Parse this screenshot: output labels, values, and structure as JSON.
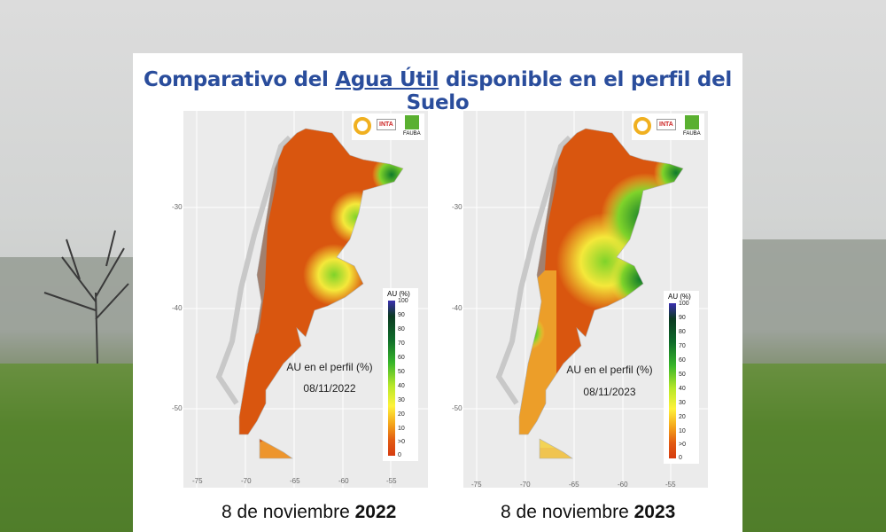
{
  "title": {
    "prefix": "Comparativo del ",
    "underlined": "Agua Útil",
    "suffix": " disponible en el perfil del Suelo"
  },
  "maps": [
    {
      "label": "AU en el perfil (%)",
      "date": "08/11/2022",
      "caption_prefix": "8 de noviembre ",
      "caption_year": "2022"
    },
    {
      "label": "AU en el perfil (%)",
      "date": "08/11/2023",
      "caption_prefix": "8 de noviembre ",
      "caption_year": "2023"
    }
  ],
  "legend": {
    "title": "AU (%)",
    "ticks": [
      "100",
      "90",
      "80",
      "70",
      "60",
      "50",
      "40",
      "30",
      "20",
      "10",
      ">0",
      "0"
    ]
  },
  "axes": {
    "y": [
      "-30",
      "-40",
      "-50"
    ],
    "x": [
      "-75",
      "-70",
      "-65",
      "-60",
      "-55"
    ]
  },
  "logos": {
    "inta": "INTA",
    "fauba": "FAUBA"
  }
}
